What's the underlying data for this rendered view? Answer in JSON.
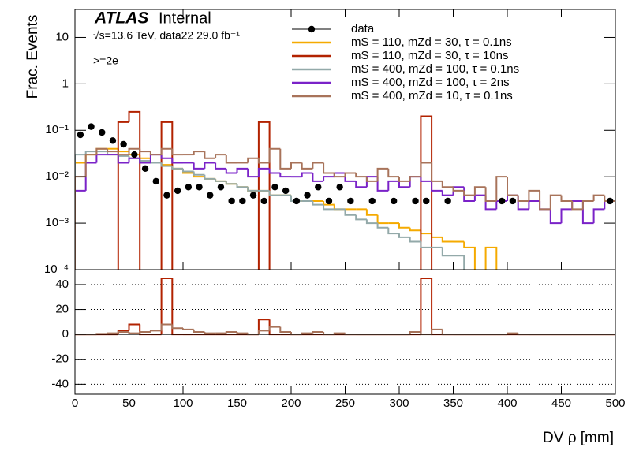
{
  "chart_data": [
    {
      "type": "histogram",
      "log_y": true,
      "ylabel": "Frac. Events",
      "annotations": {
        "atlas": "ATLAS",
        "status": "Internal",
        "energy": "√s=13.6 TeV, data22 29.0 fb⁻¹",
        "selection": ">=2e"
      },
      "legend": "upper right",
      "bins": [
        0,
        10,
        20,
        30,
        40,
        50,
        60,
        70,
        80,
        90,
        100,
        110,
        120,
        130,
        140,
        150,
        160,
        170,
        180,
        190,
        200,
        210,
        220,
        230,
        240,
        250,
        260,
        270,
        280,
        290,
        300,
        310,
        320,
        330,
        340,
        350,
        360,
        370,
        380,
        390,
        400,
        410,
        420,
        430,
        440,
        450,
        460,
        470,
        480,
        490,
        500
      ],
      "ylim": [
        0.0001,
        40
      ],
      "yticks": [
        {
          "value": 0.0001,
          "label": "10⁻⁴"
        },
        {
          "value": 0.001,
          "label": "10⁻³"
        },
        {
          "value": 0.01,
          "label": "10⁻²"
        },
        {
          "value": 0.1,
          "label": "10⁻¹"
        },
        1,
        10
      ],
      "series": [
        {
          "name": "data",
          "color": "#000000",
          "marker": true,
          "values": [
            0.08,
            0.12,
            0.09,
            0.06,
            0.05,
            0.03,
            0.015,
            0.008,
            0.004,
            0.005,
            0.006,
            0.006,
            0.004,
            0.006,
            0.003,
            0.003,
            0.004,
            0.003,
            0.006,
            0.005,
            0.003,
            0.004,
            0.006,
            0.003,
            0.006,
            0.003,
            null,
            0.003,
            null,
            0.003,
            null,
            0.003,
            0.003,
            null,
            0.003,
            null,
            null,
            null,
            null,
            0.003,
            0.003,
            null,
            null,
            null,
            null,
            null,
            null,
            null,
            null,
            0.003
          ]
        },
        {
          "name": "mS = 110, mZd = 30, τ = 0.1ns",
          "color": "#f5aa00",
          "values": [
            0.02,
            0.03,
            0.04,
            0.04,
            0.035,
            0.03,
            0.025,
            0.02,
            0.018,
            0.015,
            0.012,
            0.01,
            0.009,
            0.008,
            0.007,
            0.006,
            0.005,
            0.005,
            0.004,
            0.004,
            0.003,
            0.003,
            0.003,
            0.0025,
            0.002,
            0.002,
            0.002,
            0.0015,
            0.001,
            0.001,
            0.0008,
            0.0007,
            0.0006,
            0.0005,
            0.0004,
            0.0004,
            0.0003,
            null,
            0.0003,
            null,
            null,
            null,
            null,
            null,
            null,
            null,
            null,
            null,
            null,
            null
          ]
        },
        {
          "name": "mS = 110, mZd = 30, τ = 10ns",
          "color": "#b22200",
          "values": [
            null,
            null,
            null,
            null,
            0.15,
            0.25,
            null,
            null,
            0.15,
            null,
            null,
            null,
            null,
            null,
            null,
            null,
            null,
            0.15,
            null,
            null,
            null,
            null,
            null,
            null,
            null,
            null,
            null,
            null,
            null,
            null,
            null,
            null,
            0.2,
            null,
            null,
            null,
            null,
            null,
            null,
            null,
            null,
            null,
            null,
            null,
            null,
            null,
            null,
            null,
            null,
            null
          ]
        },
        {
          "name": "mS = 400, mZd = 100, τ = 0.1ns",
          "color": "#93a9a9",
          "values": [
            0.03,
            0.035,
            0.035,
            0.03,
            0.028,
            0.025,
            0.022,
            0.02,
            0.017,
            0.015,
            0.013,
            0.011,
            0.009,
            0.008,
            0.007,
            0.006,
            0.005,
            0.005,
            0.004,
            0.004,
            0.003,
            0.003,
            0.0025,
            0.002,
            0.002,
            0.0015,
            0.0012,
            0.001,
            0.0008,
            0.0006,
            0.0005,
            0.0004,
            0.0003,
            0.0003,
            0.0002,
            0.0002,
            null,
            null,
            null,
            null,
            null,
            null,
            null,
            null,
            null,
            null,
            null,
            null,
            null,
            null
          ]
        },
        {
          "name": "mS = 400, mZd = 100, τ = 2ns",
          "color": "#7a22c8",
          "values": [
            0.005,
            0.02,
            0.03,
            0.03,
            0.02,
            0.025,
            0.02,
            0.03,
            0.025,
            0.02,
            0.02,
            0.015,
            0.02,
            0.015,
            0.012,
            0.015,
            0.01,
            0.015,
            0.012,
            0.01,
            0.01,
            0.012,
            0.008,
            0.01,
            0.012,
            0.008,
            0.006,
            0.01,
            0.005,
            0.008,
            0.006,
            0.01,
            0.008,
            0.005,
            0.004,
            0.006,
            0.003,
            0.004,
            0.002,
            0.003,
            0.004,
            0.002,
            0.003,
            0.002,
            0.001,
            0.002,
            0.003,
            0.001,
            0.002,
            0.003
          ]
        },
        {
          "name": "mS = 400, mZd = 10, τ = 0.1ns",
          "color": "#a8735a",
          "values": [
            0.01,
            0.03,
            0.04,
            0.035,
            0.03,
            0.04,
            0.035,
            0.03,
            0.04,
            0.03,
            0.03,
            0.035,
            0.025,
            0.03,
            0.02,
            0.02,
            0.025,
            0.02,
            0.04,
            0.015,
            0.02,
            0.015,
            0.02,
            0.012,
            0.01,
            0.012,
            0.01,
            0.008,
            0.015,
            0.01,
            0.008,
            0.01,
            0.02,
            0.008,
            0.006,
            0.005,
            0.004,
            0.006,
            0.003,
            0.01,
            0.004,
            0.003,
            0.005,
            0.002,
            0.004,
            0.003,
            0.002,
            0.003,
            0.004,
            0.003
          ]
        }
      ]
    },
    {
      "type": "histogram",
      "xlabel": "DV ρ [mm]",
      "grid": true,
      "xlim": [
        0,
        500
      ],
      "xticks": [
        0,
        50,
        100,
        150,
        200,
        250,
        300,
        350,
        400,
        450,
        500
      ],
      "ylim": [
        -48,
        52
      ],
      "yticks": [
        -40,
        -20,
        0,
        20,
        40
      ],
      "series": [
        {
          "color": "#b22200",
          "values": [
            0,
            0,
            0,
            0,
            3,
            8,
            0,
            0,
            45,
            0,
            0,
            0,
            0,
            0,
            0,
            0,
            0,
            12,
            0,
            0,
            0,
            0,
            0,
            0,
            0,
            0,
            0,
            0,
            0,
            0,
            0,
            0,
            45,
            0,
            0,
            0,
            0,
            0,
            0,
            0,
            0,
            0,
            0,
            0,
            0,
            0,
            0,
            0,
            0,
            0
          ]
        },
        {
          "color": "#a8735a",
          "values": [
            0,
            0,
            0.5,
            1,
            2,
            1,
            2,
            3,
            8,
            5,
            4,
            2,
            1,
            1,
            2,
            1,
            0,
            3,
            6,
            2,
            0,
            1,
            2,
            0,
            1,
            0,
            0,
            0,
            0,
            0,
            0,
            2,
            0,
            4,
            0,
            0,
            0,
            0,
            0,
            0,
            1,
            0,
            0,
            0,
            0,
            0,
            0,
            0,
            0,
            0
          ]
        }
      ]
    }
  ]
}
